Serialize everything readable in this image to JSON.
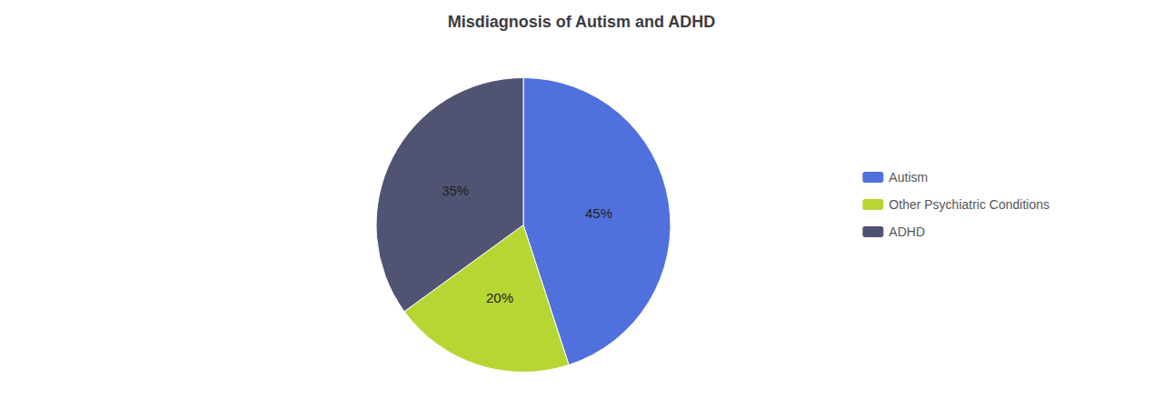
{
  "chart_data": {
    "type": "pie",
    "title": "Misdiagnosis of Autism and ADHD",
    "categories": [
      "Autism",
      "Other Psychiatric Conditions",
      "ADHD"
    ],
    "values": [
      45,
      20,
      35
    ],
    "value_labels": [
      "45%",
      "20%",
      "35%"
    ],
    "data_labels": true,
    "legend": "right"
  }
}
